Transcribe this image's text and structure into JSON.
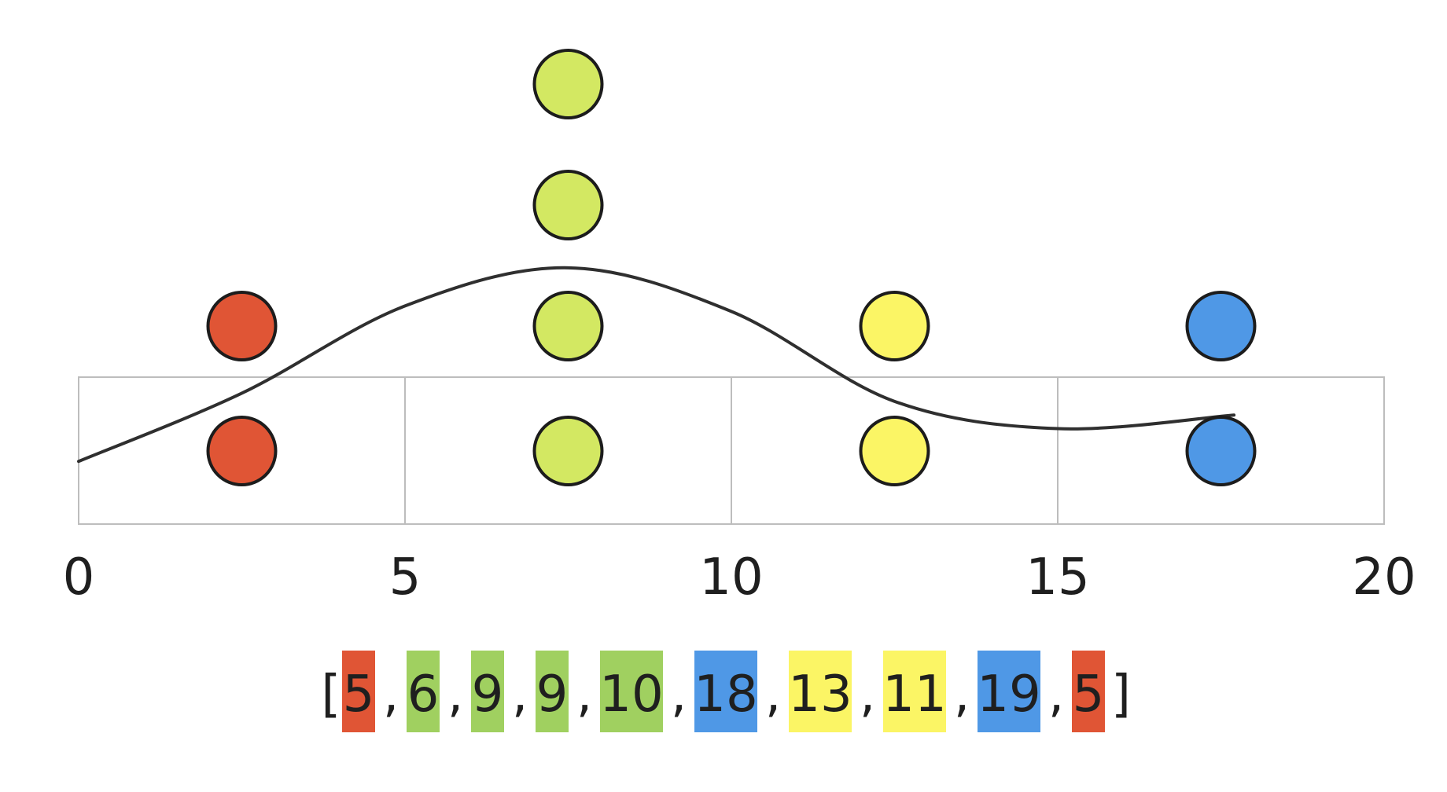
{
  "chart_data": {
    "type": "dot_histogram",
    "title": "",
    "xlabel": "",
    "ylabel": "",
    "xlim": [
      0,
      20
    ],
    "bin_width": 5,
    "x_ticks": [
      "0",
      "5",
      "10",
      "15",
      "20"
    ],
    "bins": [
      {
        "range": [
          0,
          5
        ],
        "count": 2,
        "color": "#e05535"
      },
      {
        "range": [
          5,
          10
        ],
        "count": 4,
        "color": "#d3e862"
      },
      {
        "range": [
          10,
          15
        ],
        "count": 2,
        "color": "#fbf565"
      },
      {
        "range": [
          15,
          20
        ],
        "count": 2,
        "color": "#4f98e6"
      }
    ],
    "density_curve": {
      "color": "#2f2f2f",
      "points": [
        [
          0,
          0.23
        ],
        [
          2.5,
          0.48
        ],
        [
          5,
          0.8
        ],
        [
          7.5,
          0.94
        ],
        [
          10,
          0.78
        ],
        [
          12.5,
          0.45
        ],
        [
          15,
          0.35
        ],
        [
          17.7,
          0.4
        ]
      ]
    },
    "sequence": {
      "open": "[",
      "close": "]",
      "items": [
        {
          "label": "5",
          "color": "#e05535"
        },
        {
          "label": "6",
          "color": "#a0d060"
        },
        {
          "label": "9",
          "color": "#a0d060"
        },
        {
          "label": "9",
          "color": "#a0d060"
        },
        {
          "label": "10",
          "color": "#a0d060"
        },
        {
          "label": "18",
          "color": "#4f98e6"
        },
        {
          "label": "13",
          "color": "#fbf565"
        },
        {
          "label": "11",
          "color": "#fbf565"
        },
        {
          "label": "19",
          "color": "#4f98e6"
        },
        {
          "label": "5",
          "color": "#e05535"
        }
      ]
    },
    "grid_color": "#bdbdbd"
  }
}
